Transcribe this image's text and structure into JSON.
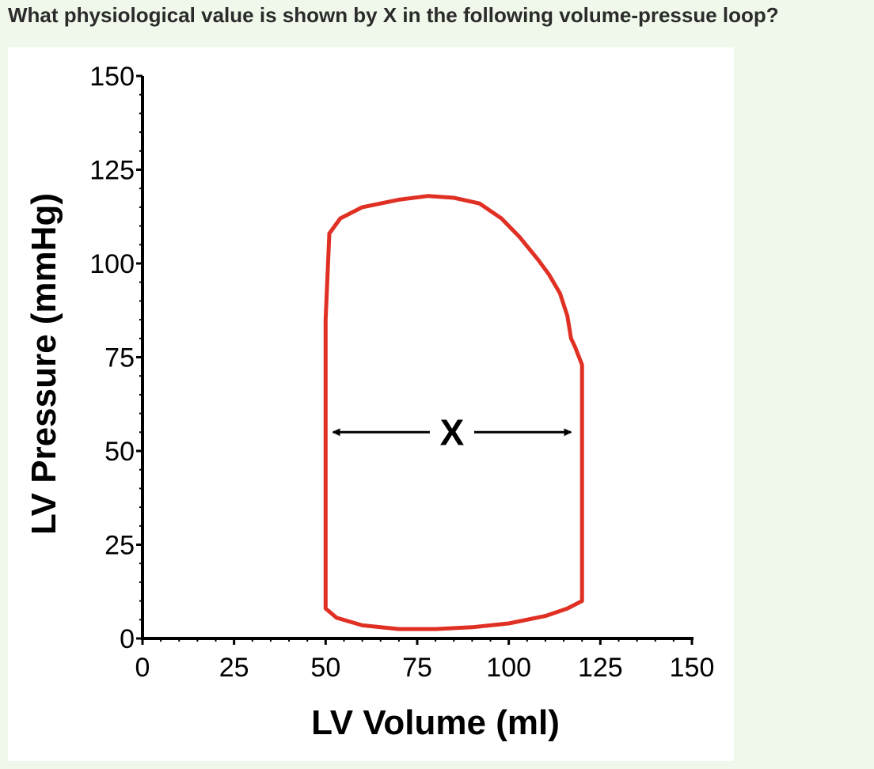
{
  "question": "What physiological value is shown by X in the following volume-pressue loop?",
  "chart_data": {
    "type": "line",
    "title": "",
    "xlabel": "LV Volume (ml)",
    "ylabel": "LV Pressure (mmHg)",
    "xlim": [
      0,
      150
    ],
    "ylim": [
      0,
      150
    ],
    "xticks": [
      "0",
      "25",
      "50",
      "75",
      "100",
      "125",
      "150"
    ],
    "yticks": [
      "0",
      "25",
      "50",
      "75",
      "100",
      "125",
      "150"
    ],
    "loop_color": "#e03024",
    "series": [
      {
        "x": [
          50,
          50,
          51,
          54,
          60,
          70,
          78,
          85,
          92,
          98,
          103,
          108,
          111,
          114,
          116,
          117,
          118,
          120,
          120,
          120,
          116,
          110,
          100,
          90,
          80,
          70,
          60,
          53,
          50,
          50
        ],
        "y": [
          10,
          85,
          108,
          112,
          115,
          117,
          118,
          117.5,
          116,
          112,
          107,
          101,
          97,
          92,
          86,
          80,
          78,
          73,
          40,
          10,
          8,
          6,
          4,
          3,
          2.5,
          2.5,
          3.5,
          5.5,
          8,
          10
        ]
      }
    ],
    "annotation": {
      "label": "X",
      "x_from": 52,
      "x_to": 117,
      "y": 55
    }
  }
}
